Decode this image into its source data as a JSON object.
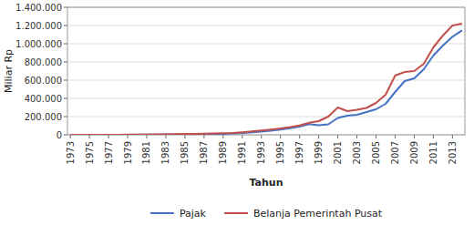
{
  "chart_data": {
    "type": "line",
    "x_label": "Tahun",
    "y_label": "Miliar Rp",
    "x": [
      1973,
      1974,
      1975,
      1976,
      1977,
      1978,
      1979,
      1980,
      1981,
      1982,
      1983,
      1984,
      1985,
      1986,
      1987,
      1988,
      1989,
      1990,
      1991,
      1992,
      1993,
      1994,
      1995,
      1996,
      1997,
      1998,
      1999,
      2000,
      2001,
      2002,
      2003,
      2004,
      2005,
      2006,
      2007,
      2008,
      2009,
      2010,
      2011,
      2012,
      2013,
      2014
    ],
    "series": [
      {
        "name": "Pajak",
        "color": "#4472C4",
        "values": [
          500,
          600,
          700,
          800,
          900,
          1000,
          1100,
          1400,
          2000,
          3000,
          4500,
          5500,
          6000,
          6500,
          7500,
          9000,
          11000,
          14000,
          20000,
          27000,
          36000,
          45000,
          58000,
          72000,
          90000,
          118000,
          105000,
          115000,
          185000,
          210000,
          220000,
          250000,
          280000,
          340000,
          470000,
          590000,
          620000,
          720000,
          870000,
          980000,
          1077000,
          1146000
        ]
      },
      {
        "name": "Belanja Pemerintah Pusat",
        "color": "#C0504D",
        "values": [
          600,
          700,
          800,
          900,
          1000,
          1200,
          1500,
          2000,
          3000,
          4500,
          6000,
          8000,
          9000,
          10000,
          12000,
          14000,
          17000,
          21000,
          28000,
          37000,
          47000,
          57000,
          69000,
          84000,
          103000,
          133000,
          150000,
          200000,
          300000,
          260000,
          275000,
          295000,
          350000,
          440000,
          650000,
          690000,
          700000,
          780000,
          960000,
          1090000,
          1200000,
          1220000
        ]
      }
    ],
    "xlim": [
      1972.7,
      2014.3
    ],
    "xticks": [
      1973,
      1975,
      1977,
      1979,
      1981,
      1983,
      1985,
      1987,
      1989,
      1991,
      1993,
      1995,
      1997,
      1999,
      2001,
      2003,
      2005,
      2007,
      2009,
      2011,
      2013
    ],
    "ylim": [
      0,
      1400000
    ],
    "yticks": [
      0,
      {
        "value": 200000,
        "label": "200.000"
      },
      {
        "value": 400000,
        "label": "400.000"
      },
      {
        "value": 600000,
        "label": "600.000"
      },
      {
        "value": 800000,
        "label": "800.000"
      },
      {
        "value": 1000000,
        "label": "1.000.000"
      },
      {
        "value": 1200000,
        "label": "1.200.000"
      },
      {
        "value": 1400000,
        "label": "1.400.000"
      }
    ],
    "grid": true,
    "legend": "bottom"
  }
}
